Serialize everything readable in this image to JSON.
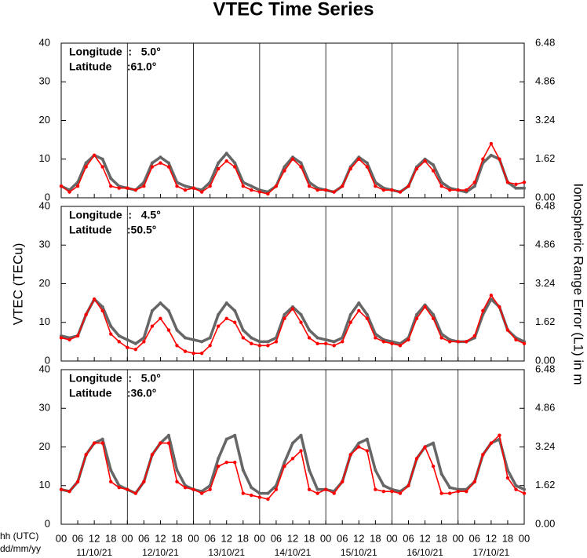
{
  "page": {
    "title": "VTEC Time Series",
    "ylabel": "VTEC (TECu)",
    "y2label": "Ionospheric Range Error (L1) in m",
    "xlabel": "hh (UTC)",
    "date_axis_label": "dd/mm/yy"
  },
  "chart_data": [
    {
      "type": "line",
      "annotations": [
        "Longitude  :   5.0°",
        "Latitude     :61.0°"
      ],
      "x": [
        0,
        3,
        6,
        9,
        12,
        15,
        18,
        21,
        24,
        27,
        30,
        33,
        36,
        39,
        42,
        45,
        48,
        51,
        54,
        57,
        60,
        63,
        66,
        69,
        72,
        75,
        78,
        81,
        84,
        87,
        90,
        93,
        96,
        99,
        102,
        105,
        108,
        111,
        114,
        117,
        120,
        123,
        126,
        129,
        132,
        135,
        138,
        141,
        144,
        147,
        150,
        153,
        156,
        159,
        162,
        165,
        168
      ],
      "xlim": [
        0,
        168
      ],
      "ylim": [
        0,
        40
      ],
      "yticks": [
        0,
        10,
        20,
        30,
        40
      ],
      "y2lim": [
        0,
        6.48
      ],
      "y2ticks": [
        {
          "value": 0,
          "label": "0.00"
        },
        1.62,
        3.24,
        4.86,
        6.48
      ],
      "series": [
        {
          "color": "#666666",
          "values": [
            3,
            2,
            4,
            9,
            11,
            10,
            5,
            3,
            2.5,
            2,
            4,
            9,
            10.5,
            9,
            4,
            3,
            2.5,
            2,
            4,
            9,
            11.5,
            9,
            4,
            3,
            2,
            1.5,
            3,
            8,
            10.5,
            9,
            4,
            2.5,
            2,
            1.5,
            3,
            8,
            10.5,
            9,
            4,
            2.5,
            2,
            1.5,
            3,
            8,
            10,
            8.5,
            4,
            2.5,
            2,
            1.5,
            3,
            9,
            11,
            10,
            4,
            2.5,
            2.5
          ]
        },
        {
          "color": "#ff0000",
          "values": [
            3,
            1.5,
            3,
            8,
            11,
            8,
            3,
            2.5,
            2.5,
            2,
            3,
            8,
            9,
            8,
            3,
            2,
            2.5,
            1.5,
            3,
            7.5,
            9.5,
            8,
            3,
            2,
            1.5,
            1,
            3,
            7,
            10,
            8,
            3,
            2,
            2,
            1.5,
            3,
            7.5,
            10,
            8,
            3,
            2,
            2,
            1.5,
            3,
            7.5,
            9.5,
            7,
            3,
            2,
            2,
            2,
            4,
            10,
            14,
            10,
            4,
            3.5,
            4
          ]
        }
      ]
    },
    {
      "type": "line",
      "annotations": [
        "Longitude  :   4.5°",
        "Latitude     :50.5°"
      ],
      "x": [
        0,
        3,
        6,
        9,
        12,
        15,
        18,
        21,
        24,
        27,
        30,
        33,
        36,
        39,
        42,
        45,
        48,
        51,
        54,
        57,
        60,
        63,
        66,
        69,
        72,
        75,
        78,
        81,
        84,
        87,
        90,
        93,
        96,
        99,
        102,
        105,
        108,
        111,
        114,
        117,
        120,
        123,
        126,
        129,
        132,
        135,
        138,
        141,
        144,
        147,
        150,
        153,
        156,
        159,
        162,
        165,
        168
      ],
      "xlim": [
        0,
        168
      ],
      "ylim": [
        0,
        40
      ],
      "yticks": [
        0,
        10,
        20,
        30,
        40
      ],
      "y2lim": [
        0,
        6.48
      ],
      "y2ticks": [
        {
          "value": 0,
          "label": "0.00"
        },
        1.62,
        3.24,
        4.86,
        6.48
      ],
      "series": [
        {
          "color": "#666666",
          "values": [
            6.5,
            6,
            6.5,
            12,
            16,
            14,
            9,
            6.5,
            5.5,
            4.5,
            6,
            13,
            15,
            13,
            8,
            6,
            5.5,
            5,
            6,
            12,
            15,
            13,
            8,
            6,
            5,
            5,
            6,
            12,
            14,
            12,
            8,
            6,
            5.5,
            5,
            6,
            12,
            15,
            12,
            7,
            5.5,
            5,
            4.5,
            6,
            12,
            14.5,
            12,
            7,
            5.5,
            5,
            5,
            6,
            12,
            16,
            14,
            8,
            6,
            5
          ]
        },
        {
          "color": "#ff0000",
          "values": [
            6,
            5.5,
            6.5,
            12,
            16,
            13,
            7,
            5,
            3.5,
            3,
            5,
            9,
            11,
            8,
            4,
            2.5,
            2,
            2,
            4,
            9,
            11,
            10,
            6,
            4.5,
            4,
            4,
            5,
            11,
            13.5,
            10,
            6,
            4.5,
            4.5,
            4,
            5,
            10,
            13,
            11,
            6,
            5,
            4.5,
            4,
            5.5,
            11,
            14,
            11,
            6,
            5,
            5,
            5,
            6.5,
            13,
            17,
            14,
            8,
            5.5,
            4.5
          ]
        }
      ]
    },
    {
      "type": "line",
      "annotations": [
        "Longitude  :   5.0°",
        "Latitude     :36.0°"
      ],
      "x": [
        0,
        3,
        6,
        9,
        12,
        15,
        18,
        21,
        24,
        27,
        30,
        33,
        36,
        39,
        42,
        45,
        48,
        51,
        54,
        57,
        60,
        63,
        66,
        69,
        72,
        75,
        78,
        81,
        84,
        87,
        90,
        93,
        96,
        99,
        102,
        105,
        108,
        111,
        114,
        117,
        120,
        123,
        126,
        129,
        132,
        135,
        138,
        141,
        144,
        147,
        150,
        153,
        156,
        159,
        162,
        165,
        168
      ],
      "xlim": [
        0,
        168
      ],
      "ylim": [
        0,
        40
      ],
      "yticks": [
        0,
        10,
        20,
        30,
        40
      ],
      "y2lim": [
        0,
        6.48
      ],
      "y2ticks": [
        {
          "value": 0,
          "label": "0.00"
        },
        1.62,
        3.24,
        4.86,
        6.48
      ],
      "xticks": [
        {
          "value": 0,
          "label": "00"
        },
        {
          "value": 6,
          "label": "06"
        },
        12,
        18,
        {
          "value": 24,
          "label": "00"
        },
        {
          "value": 30,
          "label": "06"
        },
        {
          "value": 36,
          "label": "12"
        },
        {
          "value": 42,
          "label": "18"
        },
        {
          "value": 48,
          "label": "00"
        },
        {
          "value": 54,
          "label": "06"
        },
        {
          "value": 60,
          "label": "12"
        },
        {
          "value": 66,
          "label": "18"
        },
        {
          "value": 72,
          "label": "00"
        },
        {
          "value": 78,
          "label": "06"
        },
        {
          "value": 84,
          "label": "12"
        },
        {
          "value": 90,
          "label": "18"
        },
        {
          "value": 96,
          "label": "00"
        },
        {
          "value": 102,
          "label": "06"
        },
        {
          "value": 108,
          "label": "12"
        },
        {
          "value": 114,
          "label": "18"
        },
        {
          "value": 120,
          "label": "00"
        },
        {
          "value": 126,
          "label": "06"
        },
        {
          "value": 132,
          "label": "12"
        },
        {
          "value": 138,
          "label": "18"
        },
        {
          "value": 144,
          "label": "00"
        },
        {
          "value": 150,
          "label": "06"
        },
        {
          "value": 156,
          "label": "12"
        },
        {
          "value": 162,
          "label": "18"
        },
        {
          "value": 168,
          "label": "00"
        }
      ],
      "dates": [
        {
          "value": 12,
          "label": "11/10/21"
        },
        {
          "value": 36,
          "label": "12/10/21"
        },
        {
          "value": 60,
          "label": "13/10/21"
        },
        {
          "value": 84,
          "label": "14/10/21"
        },
        {
          "value": 108,
          "label": "15/10/21"
        },
        {
          "value": 132,
          "label": "16/10/21"
        },
        {
          "value": 156,
          "label": "17/10/21"
        }
      ],
      "series": [
        {
          "color": "#666666",
          "values": [
            9,
            8.5,
            11,
            18,
            21,
            22,
            14,
            10,
            9,
            8,
            11,
            18,
            21,
            23,
            14,
            10,
            9,
            8.5,
            10,
            17,
            22,
            23,
            14,
            9.5,
            8,
            8,
            10,
            16,
            21,
            23,
            14,
            9,
            9,
            8.5,
            11,
            18,
            21,
            22,
            14,
            10,
            9,
            8.5,
            10,
            17,
            20,
            21,
            13,
            9.5,
            9,
            9,
            11,
            18,
            21,
            22,
            14,
            10,
            9
          ]
        },
        {
          "color": "#ff0000",
          "values": [
            9,
            8.5,
            11,
            18,
            21,
            21,
            11,
            9.5,
            9,
            8,
            11,
            18,
            21,
            21,
            11,
            9.5,
            9,
            8,
            9,
            15,
            16,
            16,
            8,
            7.5,
            7,
            6.5,
            9,
            15,
            17,
            19,
            9,
            8,
            9,
            8,
            11,
            18,
            20,
            19,
            9,
            8.5,
            8.5,
            8,
            10,
            17,
            20,
            15,
            8,
            8,
            8.5,
            8.5,
            11,
            18,
            21,
            23,
            12,
            9,
            8
          ]
        }
      ]
    }
  ]
}
